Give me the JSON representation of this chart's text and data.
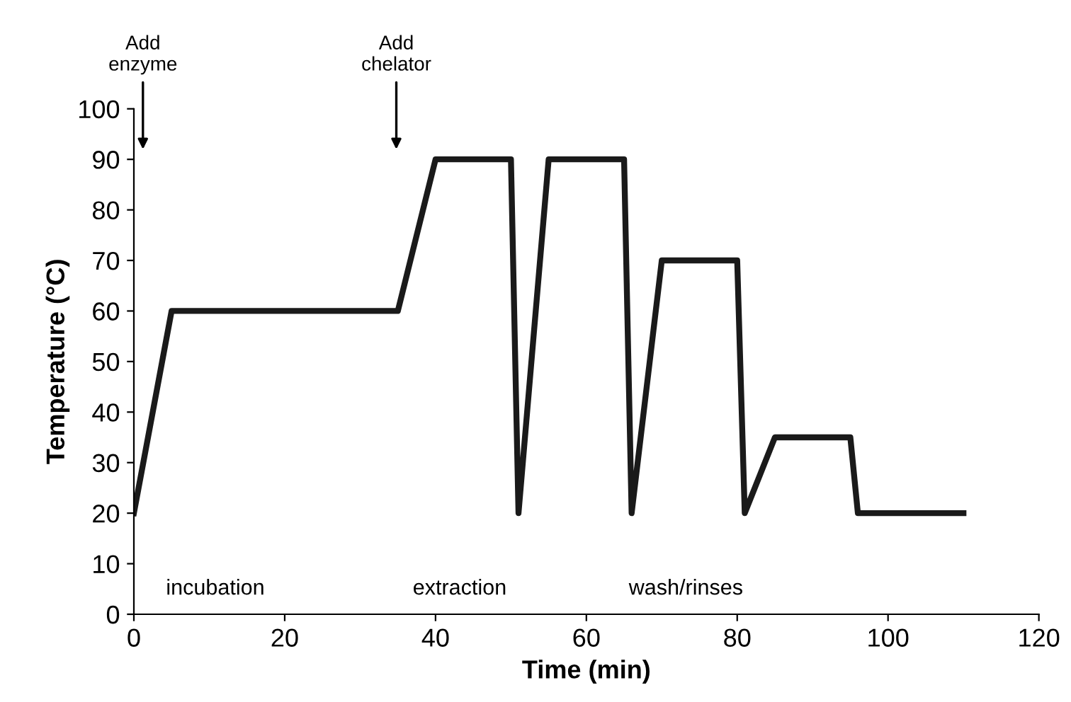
{
  "chart_data": {
    "type": "line",
    "xlabel": "Time (min)",
    "ylabel": "Temperature (°C)",
    "x": [
      0,
      5,
      35,
      40,
      50,
      51,
      55,
      65,
      66,
      70,
      80,
      81,
      85,
      95,
      96,
      110
    ],
    "series": [
      {
        "color": "#1a1a1a",
        "values": [
          20,
          60,
          60,
          90,
          90,
          20,
          90,
          90,
          20,
          70,
          70,
          20,
          35,
          35,
          20,
          20
        ]
      }
    ],
    "xlim": [
      0,
      120
    ],
    "xticks": [
      0,
      20,
      40,
      60,
      80,
      100,
      120
    ],
    "ylim": [
      0,
      100
    ],
    "yticks": [
      0,
      10,
      20,
      30,
      40,
      50,
      60,
      70,
      80,
      90,
      100
    ],
    "grid": false,
    "legend": false,
    "marker": "none",
    "line_style": "solid",
    "annotations": [
      "Add\nenzyme",
      "Add\nchelator",
      "incubation",
      "extraction",
      "wash/rinses"
    ]
  }
}
